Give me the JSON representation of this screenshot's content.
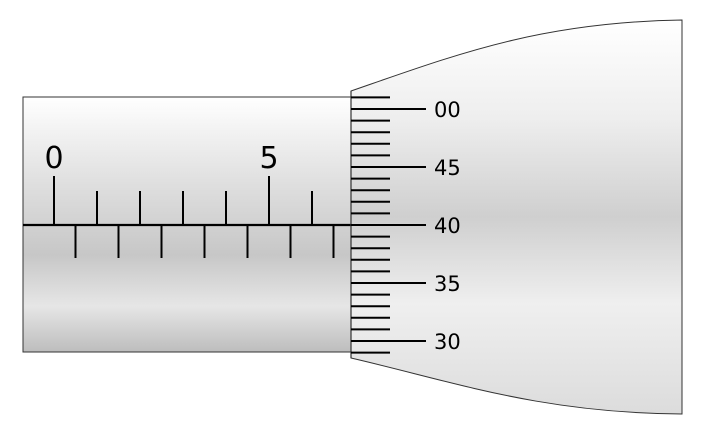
{
  "diagram": {
    "subject": "micrometer-screw-gauge-reading",
    "colors": {
      "metal_light": "#ffffff",
      "metal_mid": "#dedede",
      "metal_dark": "#bdbdbd",
      "outline": "#333333",
      "marks": "#000000"
    },
    "sleeve": {
      "labels": [
        {
          "text": "0",
          "mm": 0
        },
        {
          "text": "5",
          "mm": 5
        }
      ],
      "mm_ticks_above": [
        0,
        1,
        2,
        3,
        4,
        5,
        6
      ],
      "half_mm_ticks_below": [
        0.5,
        1.5,
        2.5,
        3.5,
        4.5,
        5.5,
        6.5
      ]
    },
    "thimble": {
      "labels": [
        {
          "text": "00",
          "value": 0
        },
        {
          "text": "45",
          "value": 45
        },
        {
          "text": "40",
          "value": 40
        },
        {
          "text": "35",
          "value": 35
        },
        {
          "text": "30",
          "value": 30
        }
      ],
      "visible_ticks": [
        1,
        0,
        49,
        48,
        47,
        46,
        45,
        44,
        43,
        42,
        41,
        40,
        39,
        38,
        37,
        36,
        35,
        34,
        33,
        32,
        31,
        30,
        29
      ],
      "reference_value": 40
    }
  }
}
